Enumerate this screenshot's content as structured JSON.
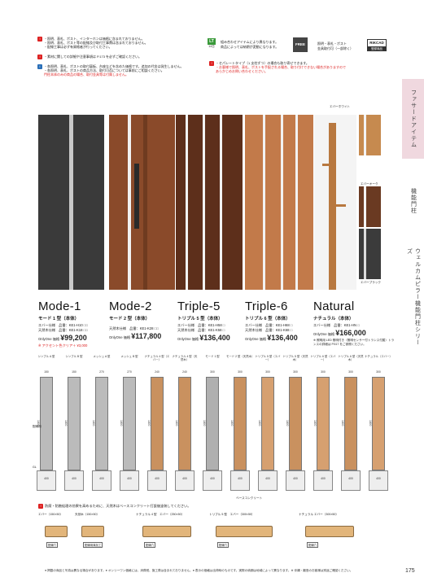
{
  "notes_left": [
    {
      "icon": "!",
      "color": "red",
      "lines": [
        "・照明、表札、ポスト、インターホンは価格に含まれておりません。",
        "・照明、表札、ポスト等の配線及び取付工事費は含まれておりません。",
        "・配線工事は必ず有資格者が行ってください。"
      ]
    },
    {
      "icon": "!",
      "color": "red",
      "lines": [
        "・素材に関しての詳細や注意事項は P.173 を必ずご確認ください。"
      ]
    },
    {
      "icon": "i",
      "color": "blue",
      "lines": [
        "・各照明、表札、ポストの取付裏板、台座などを含めた価格です。追加の代金は発生しません。",
        "・各照明、表札、ポストの商品方法、取付可否については事前にご相談ください。",
        "門柱本体のみの商品の場合、取付金具等は付属しません。"
      ]
    }
  ],
  "notes_mid": {
    "badge": "LT",
    "badge_sub": "14日",
    "text": [
      "組み合わせアイテムにより異なります。",
      "商品によっては納期が変動になります。"
    ],
    "free": "FREE",
    "free_text": [
      "照明・表札・ポスト",
      "金具取付可（一部除く）"
    ],
    "rikcad": "RIKCAD",
    "rikcad_sub": "登録商品",
    "warn": [
      "・セパレートタイプ（1 支柱ずつ）の場合も取り寄せできます。",
      "・お客様で照明、表札、ポストを手配される場合、取り付けできない場合がありますので",
      "あらかじめお問い合わせください。"
    ]
  },
  "side_tabs": [
    "ファサードアイテム",
    "機能門柱",
    "ウェルカムピラー機能門柱シリーズ"
  ],
  "swatches": {
    "title": "エバーホワイト",
    "items": [
      "エバーオーク",
      "エバーブラウン",
      "エバーブラック"
    ]
  },
  "products": [
    {
      "mode": "Mode-1",
      "name": "モード 1 型（本体）",
      "l1": "エバー仕様　品番：KE1-H10 □□",
      "l2": "天然木仕様　品番：KE1-K18 □□",
      "price_label": "OnlyOne 価格",
      "price": "¥99,200",
      "note": "※ アクセント色クリア＋ ¥3,000"
    },
    {
      "mode": "Mode-2",
      "name": "モード 2 型（本体）",
      "l1": "天然木仕様　品番：KE1-K28 □□",
      "l2": "",
      "price_label": "OnlyOne 価格",
      "price": "¥117,800",
      "note": ""
    },
    {
      "mode": "Triple-5",
      "name": "トリプル 5 型（本体）",
      "l1": "エバー仕様　品番：KE1-H58 □",
      "l2": "天然木仕様　品番：KE1-K58 □",
      "price_label": "OnlyOne 価格",
      "price": "¥136,400",
      "note": ""
    },
    {
      "mode": "Triple-6",
      "name": "トリプル 6 型（本体）",
      "l1": "エバー仕様　品番：KE1-H68 □",
      "l2": "天然木仕様　品番：KE1-K68 □",
      "price_label": "OnlyOne 価格",
      "price": "¥136,400",
      "note": ""
    },
    {
      "mode": "Natural",
      "name": "ナチュラル（本体）",
      "l1": "エバー仕様　品番：KE1-HN □",
      "l2": "",
      "price_label": "OnlyOne 価格",
      "price": "¥166,000",
      "note": "※ 照明用 LED 照明付き（照明センサー付トランス付属）トランスの詳細は P.517 をご参照ください。"
    }
  ],
  "drawings": [
    {
      "label": "シンプル A 型",
      "w": "150"
    },
    {
      "label": "シンプル B 型",
      "w": "150"
    },
    {
      "label": "メッシュ A 型",
      "w": "270"
    },
    {
      "label": "メッシュ B 型",
      "w": "270"
    },
    {
      "label": "ナチュラル 4 型（エバー）",
      "w": "240"
    },
    {
      "label": "ナチュラル 4 型（天然木）",
      "w": "240"
    },
    {
      "label": "モード 1 型",
      "w": "300"
    },
    {
      "label": "モード 2 型（天然木）",
      "w": "300"
    },
    {
      "label": "トリプル 5 型（エバー）",
      "w": "300"
    },
    {
      "label": "トリプル 5 型（天然木）",
      "w": "300"
    },
    {
      "label": "トリプル 6 型（エバー）",
      "w": "300"
    },
    {
      "label": "トリプル 6 型（天然木）",
      "w": "300"
    },
    {
      "label": "ナチュラル（エバー）",
      "w": "300"
    }
  ],
  "dim_labels": {
    "height": "1800",
    "base": "600",
    "depth": "400",
    "gl": "GL",
    "wall": "配線用",
    "base_note": "ベースコンクリート"
  },
  "bottom_note": "防腐・防蝕処理の効果を高めるために、天然木はベースコンクリート打設後塗装してください。",
  "sections": [
    {
      "label": "エバー（150×50）",
      "note": "配線穴"
    },
    {
      "label": "天然木（150×50）",
      "note": "配線用溝加工"
    },
    {
      "label": "ナチュラル 4 型　エバー（250×50）",
      "note": "配線穴"
    },
    {
      "label": "トリプル 5 型　エバー（300×50）",
      "note": "配線穴"
    },
    {
      "label": "ナチュラル エバー（300×50）",
      "note": "配線穴"
    }
  ],
  "footer": "● 掲載の商品と写真は異なる場合があります。● オンリーワン価格には、消費税、施工費は含まれておりません。● 表示の価格は出荷時のものです。実際の納期は地域によって異なります。※ 沖縄・離島のお客様は別途ご確認ください。",
  "page_num": "175"
}
